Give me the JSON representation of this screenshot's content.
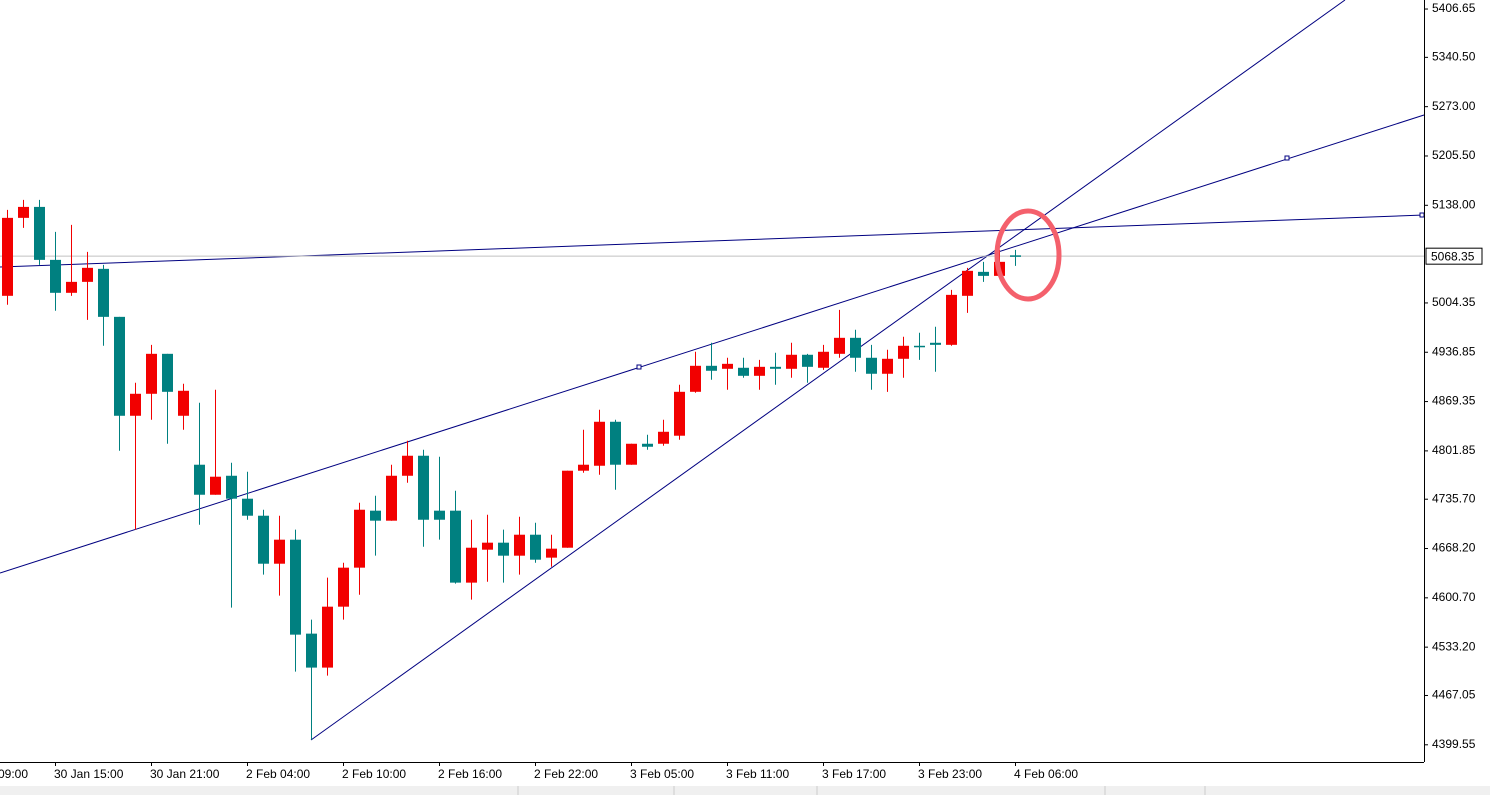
{
  "chart_data": {
    "type": "candlestick",
    "categories": [
      null,
      null,
      null,
      "30 Jan 15:00",
      null,
      null,
      null,
      null,
      null,
      "30 Jan 21:00",
      null,
      null,
      null,
      null,
      null,
      "2 Feb 04:00",
      null,
      null,
      null,
      null,
      null,
      "2 Feb 10:00",
      null,
      null,
      null,
      null,
      null,
      "2 Feb 16:00",
      null,
      null,
      null,
      null,
      null,
      "2 Feb 22:00",
      null,
      null,
      null,
      null,
      null,
      "3 Feb 05:00",
      null,
      null,
      null,
      null,
      null,
      "3 Feb 11:00",
      null,
      null,
      null,
      null,
      null,
      "3 Feb 17:00",
      null,
      null,
      null,
      null,
      null,
      "3 Feb 23:00",
      null,
      null,
      null,
      null,
      null,
      "4 Feb 06:00"
    ],
    "x_clipped_label": "09:00",
    "open": [
      5014.1,
      5120.8,
      5135.8,
      5063.3,
      5018.2,
      5033.2,
      5051.0,
      4985.3,
      4849.9,
      4880.0,
      4934.7,
      4849.9,
      4782.9,
      4741.8,
      4767.8,
      4736.4,
      4713.1,
      4647.4,
      4680.3,
      4551.7,
      4505.2,
      4588.6,
      4642.0,
      4720.0,
      4706.3,
      4767.8,
      4795.2,
      4720.0,
      4720.0,
      4621.5,
      4666.6,
      4676.2,
      4658.4,
      4687.1,
      4655.7,
      4669.3,
      4774.7,
      4781.5,
      4841.7,
      4782.9,
      4811.6,
      4811.6,
      4822.6,
      4882.7,
      4918.3,
      4914.2,
      4915.6,
      4904.6,
      4916.9,
      4914.2,
      4933.4,
      4915.6,
      4934.7,
      4956.6,
      4929.3,
      4907.4,
      4927.9,
      4945.7,
      4949.8,
      4947.0,
      5014.1,
      5046.9,
      5041.4,
      5069.5
    ],
    "high": [
      5131.7,
      5145.4,
      5145.4,
      5101.6,
      5111.2,
      5074.3,
      5056.5,
      4985.3,
      4895.1,
      4947.0,
      4934.7,
      4893.7,
      4867.7,
      4885.5,
      4785.6,
      4773.3,
      4721.3,
      4713.1,
      4694.0,
      4570.8,
      4628.3,
      4648.8,
      4730.9,
      4740.5,
      4782.9,
      4815.7,
      4803.4,
      4793.8,
      4747.3,
      4707.6,
      4714.5,
      4694.0,
      4711.7,
      4703.5,
      4687.1,
      4774.7,
      4830.8,
      4858.1,
      4844.4,
      4811.6,
      4823.9,
      4844.4,
      4892.3,
      4937.5,
      4949.8,
      4929.3,
      4929.3,
      4926.5,
      4936.1,
      4949.8,
      4934.7,
      4947.0,
      4994.9,
      4967.6,
      4947.0,
      4940.2,
      4958.0,
      4963.5,
      4971.7,
      5022.3,
      5052.4,
      5060.6,
      5077.0,
      5077.0
    ],
    "low": [
      5001.8,
      5107.1,
      5056.5,
      4993.6,
      5014.1,
      4981.2,
      4945.7,
      4802.0,
      4694.0,
      4844.4,
      4811.6,
      4830.8,
      4700.8,
      4741.8,
      4587.3,
      4707.6,
      4632.4,
      4603.7,
      4499.7,
      4406.7,
      4494.2,
      4570.8,
      4605.0,
      4658.4,
      4706.3,
      4758.3,
      4670.7,
      4680.3,
      4620.1,
      4598.2,
      4622.8,
      4621.5,
      4632.4,
      4648.8,
      4643.3,
      4669.3,
      4771.9,
      4769.2,
      4748.7,
      4782.9,
      4803.4,
      4808.9,
      4817.1,
      4881.4,
      4899.2,
      4885.5,
      4901.9,
      4885.5,
      4892.3,
      4901.9,
      4895.1,
      4912.8,
      4929.3,
      4910.1,
      4885.5,
      4882.7,
      4901.9,
      4926.5,
      4910.1,
      4945.7,
      4990.8,
      5033.2,
      5038.7,
      5055.1
    ],
    "close": [
      5120.8,
      5135.8,
      5063.3,
      5018.2,
      5033.2,
      5052.4,
      4985.3,
      4849.9,
      4880.0,
      4934.7,
      4882.7,
      4884.1,
      4741.8,
      4766.5,
      4736.4,
      4713.1,
      4647.4,
      4680.3,
      4550.3,
      4505.2,
      4588.6,
      4642.0,
      4721.3,
      4706.3,
      4767.8,
      4795.2,
      4707.6,
      4707.6,
      4621.5,
      4669.3,
      4676.2,
      4658.4,
      4687.1,
      4652.9,
      4668.0,
      4774.7,
      4782.9,
      4841.7,
      4782.9,
      4811.6,
      4807.5,
      4828.0,
      4882.7,
      4918.3,
      4911.5,
      4921.0,
      4904.6,
      4916.9,
      4914.2,
      4933.4,
      4916.9,
      4937.5,
      4956.6,
      4929.3,
      4907.4,
      4927.9,
      4945.7,
      4944.3,
      4947.0,
      5015.4,
      5048.3,
      5041.4,
      5060.6,
      5068.35
    ],
    "bull_color": "#f20000",
    "bear_color": "#008080",
    "current_price": 5068.35,
    "ylim": [
      4376.0,
      5419.0
    ],
    "yticks": [
      5406.65,
      {
        "value": 5340.5,
        "label": "5340.50"
      },
      {
        "value": 5273,
        "label": "5273.00"
      },
      {
        "value": 5205.5,
        "label": "5205.50"
      },
      {
        "value": 5138,
        "label": "5138.00"
      },
      5004.35,
      4936.85,
      4869.35,
      4801.85,
      {
        "value": 4735.7,
        "label": "4735.70"
      },
      {
        "value": 4668.2,
        "label": "4668.20"
      },
      {
        "value": 4600.7,
        "label": "4600.70"
      },
      {
        "value": 4533.2,
        "label": "4533.20"
      },
      4467.05,
      4399.55
    ],
    "grid": false
  }
}
